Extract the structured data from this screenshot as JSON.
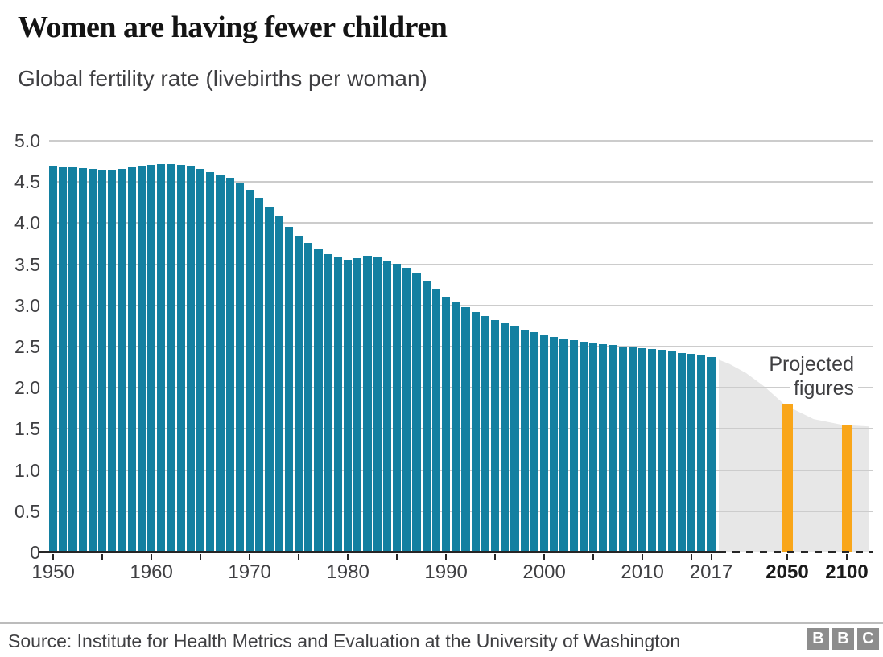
{
  "header": {
    "title": "Women are having fewer children",
    "subtitle": "Global fertility rate (livebirths per woman)"
  },
  "chart_data": {
    "type": "bar",
    "title": "Women are having fewer children",
    "subtitle": "Global fertility rate (livebirths per woman)",
    "ylabel": "Global fertility rate (livebirths per woman)",
    "ylim": [
      0,
      5.0
    ],
    "y_ticks": [
      0,
      0.5,
      1.0,
      1.5,
      2.0,
      2.5,
      3.0,
      3.5,
      4.0,
      4.5,
      5.0
    ],
    "grid": true,
    "legend_position": "none",
    "x_tick_label_years": [
      1950,
      1960,
      1970,
      1980,
      1990,
      2000,
      2010,
      2017,
      2050,
      2100
    ],
    "x_minor_tick_years": [
      1950,
      1955,
      1960,
      1965,
      1970,
      1975,
      1980,
      1985,
      1990,
      1995,
      2000,
      2005,
      2010,
      2015,
      2017,
      2050,
      2100
    ],
    "historical": {
      "series_name": "Global fertility rate 1950-2017",
      "start_year": 1950,
      "end_year": 2017,
      "values": [
        4.69,
        4.68,
        4.68,
        4.67,
        4.66,
        4.65,
        4.65,
        4.66,
        4.68,
        4.7,
        4.71,
        4.72,
        4.72,
        4.71,
        4.7,
        4.66,
        4.62,
        4.59,
        4.55,
        4.48,
        4.4,
        4.31,
        4.2,
        4.08,
        3.96,
        3.85,
        3.76,
        3.68,
        3.62,
        3.58,
        3.56,
        3.57,
        3.6,
        3.58,
        3.55,
        3.51,
        3.46,
        3.39,
        3.3,
        3.2,
        3.11,
        3.04,
        2.98,
        2.92,
        2.87,
        2.82,
        2.78,
        2.74,
        2.71,
        2.68,
        2.65,
        2.62,
        2.6,
        2.58,
        2.56,
        2.55,
        2.53,
        2.52,
        2.5,
        2.49,
        2.48,
        2.47,
        2.46,
        2.44,
        2.42,
        2.41,
        2.39,
        2.37
      ]
    },
    "projected": {
      "label": "Projected figures",
      "bars": [
        {
          "year": 2050,
          "value": 1.8
        },
        {
          "year": 2100,
          "value": 1.55
        }
      ],
      "area_curve": [
        [
          0.0,
          2.34
        ],
        [
          0.07,
          2.29
        ],
        [
          0.18,
          2.18
        ],
        [
          0.3,
          2.02
        ],
        [
          0.44,
          1.79
        ],
        [
          0.63,
          1.62
        ],
        [
          0.82,
          1.55
        ],
        [
          1.0,
          1.53
        ]
      ]
    },
    "colors": {
      "historical_bar": "#1380A1",
      "projected_bar": "#F9A61A",
      "projected_area": "#E7E7E7",
      "gridline": "#CCCCCC",
      "axis": "#262626"
    }
  },
  "projected_label": {
    "line1": "Projected",
    "line2": "figures"
  },
  "footer": {
    "source": "Source: Institute for Health Metrics and Evaluation at the University of Washington",
    "logo_letters": [
      "B",
      "B",
      "C"
    ]
  }
}
